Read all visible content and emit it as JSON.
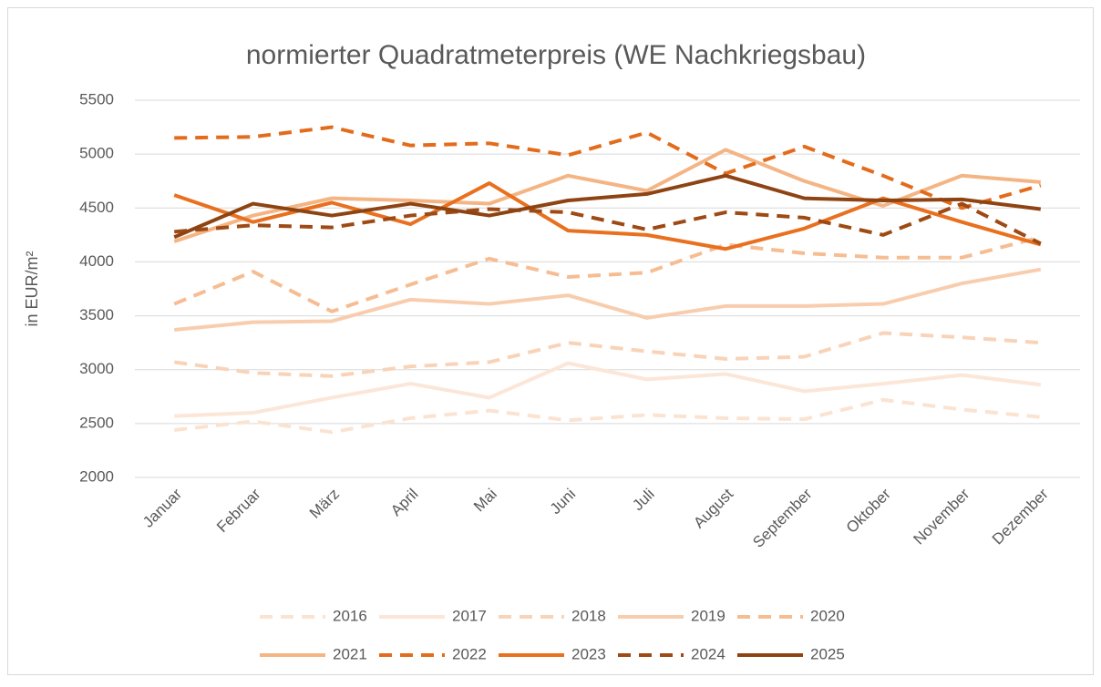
{
  "chart_data": {
    "type": "line",
    "title": "normierter Quadratmeterpreis (WE Nachkriegsbau)",
    "y_label": "in EUR/m²",
    "categories": [
      "Januar",
      "Februar",
      "März",
      "April",
      "Mai",
      "Juni",
      "Juli",
      "August",
      "September",
      "Oktober",
      "November",
      "Dezember"
    ],
    "ylim": [
      2000,
      5500
    ],
    "yticks": [
      2000,
      2500,
      3000,
      3500,
      4000,
      4500,
      5000,
      5500
    ],
    "grid": true,
    "legend": "bottom",
    "series": [
      {
        "name": "2016",
        "color": "#fbe3d2",
        "dashed": true,
        "values": [
          2440,
          2520,
          2420,
          2550,
          2620,
          2530,
          2580,
          2550,
          2540,
          2720,
          2630,
          2560
        ]
      },
      {
        "name": "2017",
        "color": "#fce6d8",
        "dashed": false,
        "values": [
          2570,
          2600,
          2740,
          2870,
          2740,
          3060,
          2910,
          2960,
          2800,
          2870,
          2950,
          2860
        ]
      },
      {
        "name": "2018",
        "color": "#f9d3b8",
        "dashed": true,
        "values": [
          3070,
          2970,
          2940,
          3030,
          3070,
          3250,
          3170,
          3100,
          3120,
          3340,
          3300,
          3250
        ]
      },
      {
        "name": "2019",
        "color": "#f8cdae",
        "dashed": false,
        "values": [
          3370,
          3440,
          3450,
          3650,
          3610,
          3690,
          3480,
          3590,
          3590,
          3610,
          3800,
          3930
        ]
      },
      {
        "name": "2020",
        "color": "#f6bd93",
        "dashed": true,
        "values": [
          3610,
          3910,
          3540,
          3790,
          4030,
          3860,
          3900,
          4160,
          4080,
          4040,
          4040,
          4230
        ]
      },
      {
        "name": "2021",
        "color": "#f4b585",
        "dashed": false,
        "values": [
          4190,
          4430,
          4590,
          4570,
          4540,
          4800,
          4660,
          5040,
          4750,
          4520,
          4800,
          4740
        ]
      },
      {
        "name": "2022",
        "color": "#e36c1c",
        "dashed": true,
        "values": [
          5150,
          5160,
          5250,
          5080,
          5100,
          4990,
          5200,
          4820,
          5070,
          4800,
          4500,
          4710
        ]
      },
      {
        "name": "2023",
        "color": "#e8701f",
        "dashed": false,
        "values": [
          4620,
          4370,
          4550,
          4350,
          4730,
          4290,
          4250,
          4120,
          4310,
          4590,
          4370,
          4160
        ]
      },
      {
        "name": "2024",
        "color": "#9e4a14",
        "dashed": true,
        "values": [
          4280,
          4340,
          4320,
          4430,
          4490,
          4460,
          4300,
          4460,
          4410,
          4250,
          4540,
          4170
        ]
      },
      {
        "name": "2025",
        "color": "#8e4412",
        "dashed": false,
        "values": [
          4230,
          4540,
          4430,
          4540,
          4430,
          4570,
          4630,
          4800,
          4590,
          4570,
          4580,
          4490
        ]
      }
    ]
  }
}
